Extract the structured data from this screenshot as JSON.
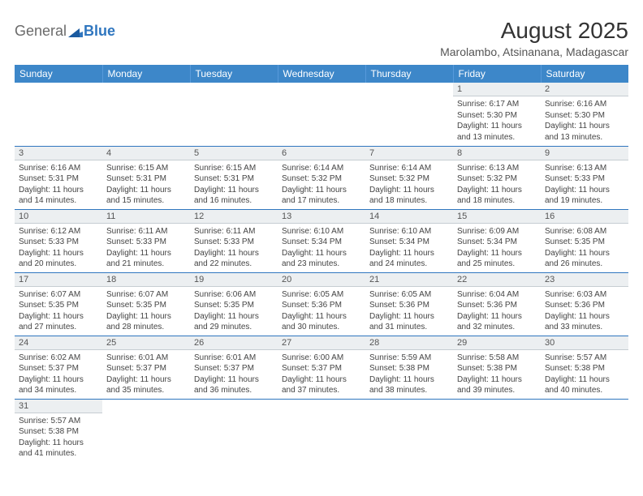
{
  "logo": {
    "text_general": "General",
    "text_blue": "Blue"
  },
  "title": "August 2025",
  "location": "Marolambo, Atsinanana, Madagascar",
  "colors": {
    "header_bg": "#3d87c9",
    "row_divider": "#2f76bf",
    "daynum_bg": "#eceff1",
    "text": "#333333",
    "body_text": "#444444"
  },
  "typography": {
    "title_fontsize": 28,
    "location_fontsize": 14,
    "dayhead_fontsize": 12,
    "daynum_fontsize": 11,
    "body_fontsize": 10
  },
  "day_headers": [
    "Sunday",
    "Monday",
    "Tuesday",
    "Wednesday",
    "Thursday",
    "Friday",
    "Saturday"
  ],
  "weeks": [
    [
      {
        "n": "",
        "empty": true
      },
      {
        "n": "",
        "empty": true
      },
      {
        "n": "",
        "empty": true
      },
      {
        "n": "",
        "empty": true
      },
      {
        "n": "",
        "empty": true
      },
      {
        "n": "1",
        "sunrise": "6:17 AM",
        "sunset": "5:30 PM",
        "dl_h": 11,
        "dl_m": 13
      },
      {
        "n": "2",
        "sunrise": "6:16 AM",
        "sunset": "5:30 PM",
        "dl_h": 11,
        "dl_m": 13
      }
    ],
    [
      {
        "n": "3",
        "sunrise": "6:16 AM",
        "sunset": "5:31 PM",
        "dl_h": 11,
        "dl_m": 14
      },
      {
        "n": "4",
        "sunrise": "6:15 AM",
        "sunset": "5:31 PM",
        "dl_h": 11,
        "dl_m": 15
      },
      {
        "n": "5",
        "sunrise": "6:15 AM",
        "sunset": "5:31 PM",
        "dl_h": 11,
        "dl_m": 16
      },
      {
        "n": "6",
        "sunrise": "6:14 AM",
        "sunset": "5:32 PM",
        "dl_h": 11,
        "dl_m": 17
      },
      {
        "n": "7",
        "sunrise": "6:14 AM",
        "sunset": "5:32 PM",
        "dl_h": 11,
        "dl_m": 18
      },
      {
        "n": "8",
        "sunrise": "6:13 AM",
        "sunset": "5:32 PM",
        "dl_h": 11,
        "dl_m": 18
      },
      {
        "n": "9",
        "sunrise": "6:13 AM",
        "sunset": "5:33 PM",
        "dl_h": 11,
        "dl_m": 19
      }
    ],
    [
      {
        "n": "10",
        "sunrise": "6:12 AM",
        "sunset": "5:33 PM",
        "dl_h": 11,
        "dl_m": 20
      },
      {
        "n": "11",
        "sunrise": "6:11 AM",
        "sunset": "5:33 PM",
        "dl_h": 11,
        "dl_m": 21
      },
      {
        "n": "12",
        "sunrise": "6:11 AM",
        "sunset": "5:33 PM",
        "dl_h": 11,
        "dl_m": 22
      },
      {
        "n": "13",
        "sunrise": "6:10 AM",
        "sunset": "5:34 PM",
        "dl_h": 11,
        "dl_m": 23
      },
      {
        "n": "14",
        "sunrise": "6:10 AM",
        "sunset": "5:34 PM",
        "dl_h": 11,
        "dl_m": 24
      },
      {
        "n": "15",
        "sunrise": "6:09 AM",
        "sunset": "5:34 PM",
        "dl_h": 11,
        "dl_m": 25
      },
      {
        "n": "16",
        "sunrise": "6:08 AM",
        "sunset": "5:35 PM",
        "dl_h": 11,
        "dl_m": 26
      }
    ],
    [
      {
        "n": "17",
        "sunrise": "6:07 AM",
        "sunset": "5:35 PM",
        "dl_h": 11,
        "dl_m": 27
      },
      {
        "n": "18",
        "sunrise": "6:07 AM",
        "sunset": "5:35 PM",
        "dl_h": 11,
        "dl_m": 28
      },
      {
        "n": "19",
        "sunrise": "6:06 AM",
        "sunset": "5:35 PM",
        "dl_h": 11,
        "dl_m": 29
      },
      {
        "n": "20",
        "sunrise": "6:05 AM",
        "sunset": "5:36 PM",
        "dl_h": 11,
        "dl_m": 30
      },
      {
        "n": "21",
        "sunrise": "6:05 AM",
        "sunset": "5:36 PM",
        "dl_h": 11,
        "dl_m": 31
      },
      {
        "n": "22",
        "sunrise": "6:04 AM",
        "sunset": "5:36 PM",
        "dl_h": 11,
        "dl_m": 32
      },
      {
        "n": "23",
        "sunrise": "6:03 AM",
        "sunset": "5:36 PM",
        "dl_h": 11,
        "dl_m": 33
      }
    ],
    [
      {
        "n": "24",
        "sunrise": "6:02 AM",
        "sunset": "5:37 PM",
        "dl_h": 11,
        "dl_m": 34
      },
      {
        "n": "25",
        "sunrise": "6:01 AM",
        "sunset": "5:37 PM",
        "dl_h": 11,
        "dl_m": 35
      },
      {
        "n": "26",
        "sunrise": "6:01 AM",
        "sunset": "5:37 PM",
        "dl_h": 11,
        "dl_m": 36
      },
      {
        "n": "27",
        "sunrise": "6:00 AM",
        "sunset": "5:37 PM",
        "dl_h": 11,
        "dl_m": 37
      },
      {
        "n": "28",
        "sunrise": "5:59 AM",
        "sunset": "5:38 PM",
        "dl_h": 11,
        "dl_m": 38
      },
      {
        "n": "29",
        "sunrise": "5:58 AM",
        "sunset": "5:38 PM",
        "dl_h": 11,
        "dl_m": 39
      },
      {
        "n": "30",
        "sunrise": "5:57 AM",
        "sunset": "5:38 PM",
        "dl_h": 11,
        "dl_m": 40
      }
    ],
    [
      {
        "n": "31",
        "sunrise": "5:57 AM",
        "sunset": "5:38 PM",
        "dl_h": 11,
        "dl_m": 41
      },
      {
        "n": "",
        "empty": true
      },
      {
        "n": "",
        "empty": true
      },
      {
        "n": "",
        "empty": true
      },
      {
        "n": "",
        "empty": true
      },
      {
        "n": "",
        "empty": true
      },
      {
        "n": "",
        "empty": true
      }
    ]
  ],
  "labels": {
    "sunrise": "Sunrise:",
    "sunset": "Sunset:",
    "daylight": "Daylight:",
    "hours": "hours",
    "and": "and",
    "minutes": "minutes."
  }
}
